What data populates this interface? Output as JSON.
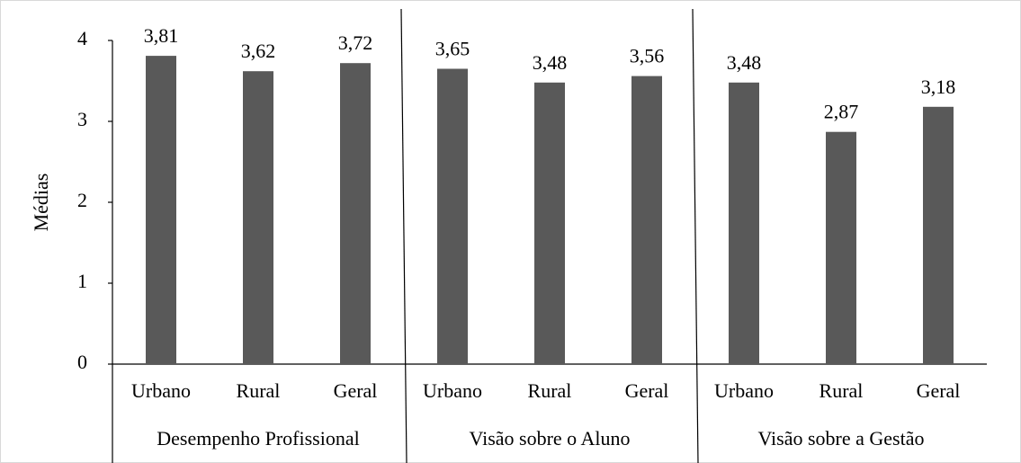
{
  "chart_data": {
    "type": "bar",
    "y_label": "Médias",
    "categories": [
      "Urbano",
      "Rural",
      "Geral",
      "Urbano",
      "Rural",
      "Geral",
      "Urbano",
      "Rural",
      "Geral"
    ],
    "groups": [
      "Desempenho Profissional",
      "Visão sobre o Aluno",
      "Visão sobre a Gestão"
    ],
    "values": [
      3.81,
      3.62,
      3.72,
      3.65,
      3.48,
      3.56,
      3.48,
      2.87,
      3.18
    ],
    "value_labels": [
      "3,81",
      "3,62",
      "3,72",
      "3,65",
      "3,48",
      "3,56",
      "3,48",
      "2,87",
      "3,18"
    ],
    "color": "#595959",
    "ylim": [
      0,
      4
    ],
    "yticks": [
      0,
      1,
      2,
      3,
      4
    ],
    "grid": false
  }
}
